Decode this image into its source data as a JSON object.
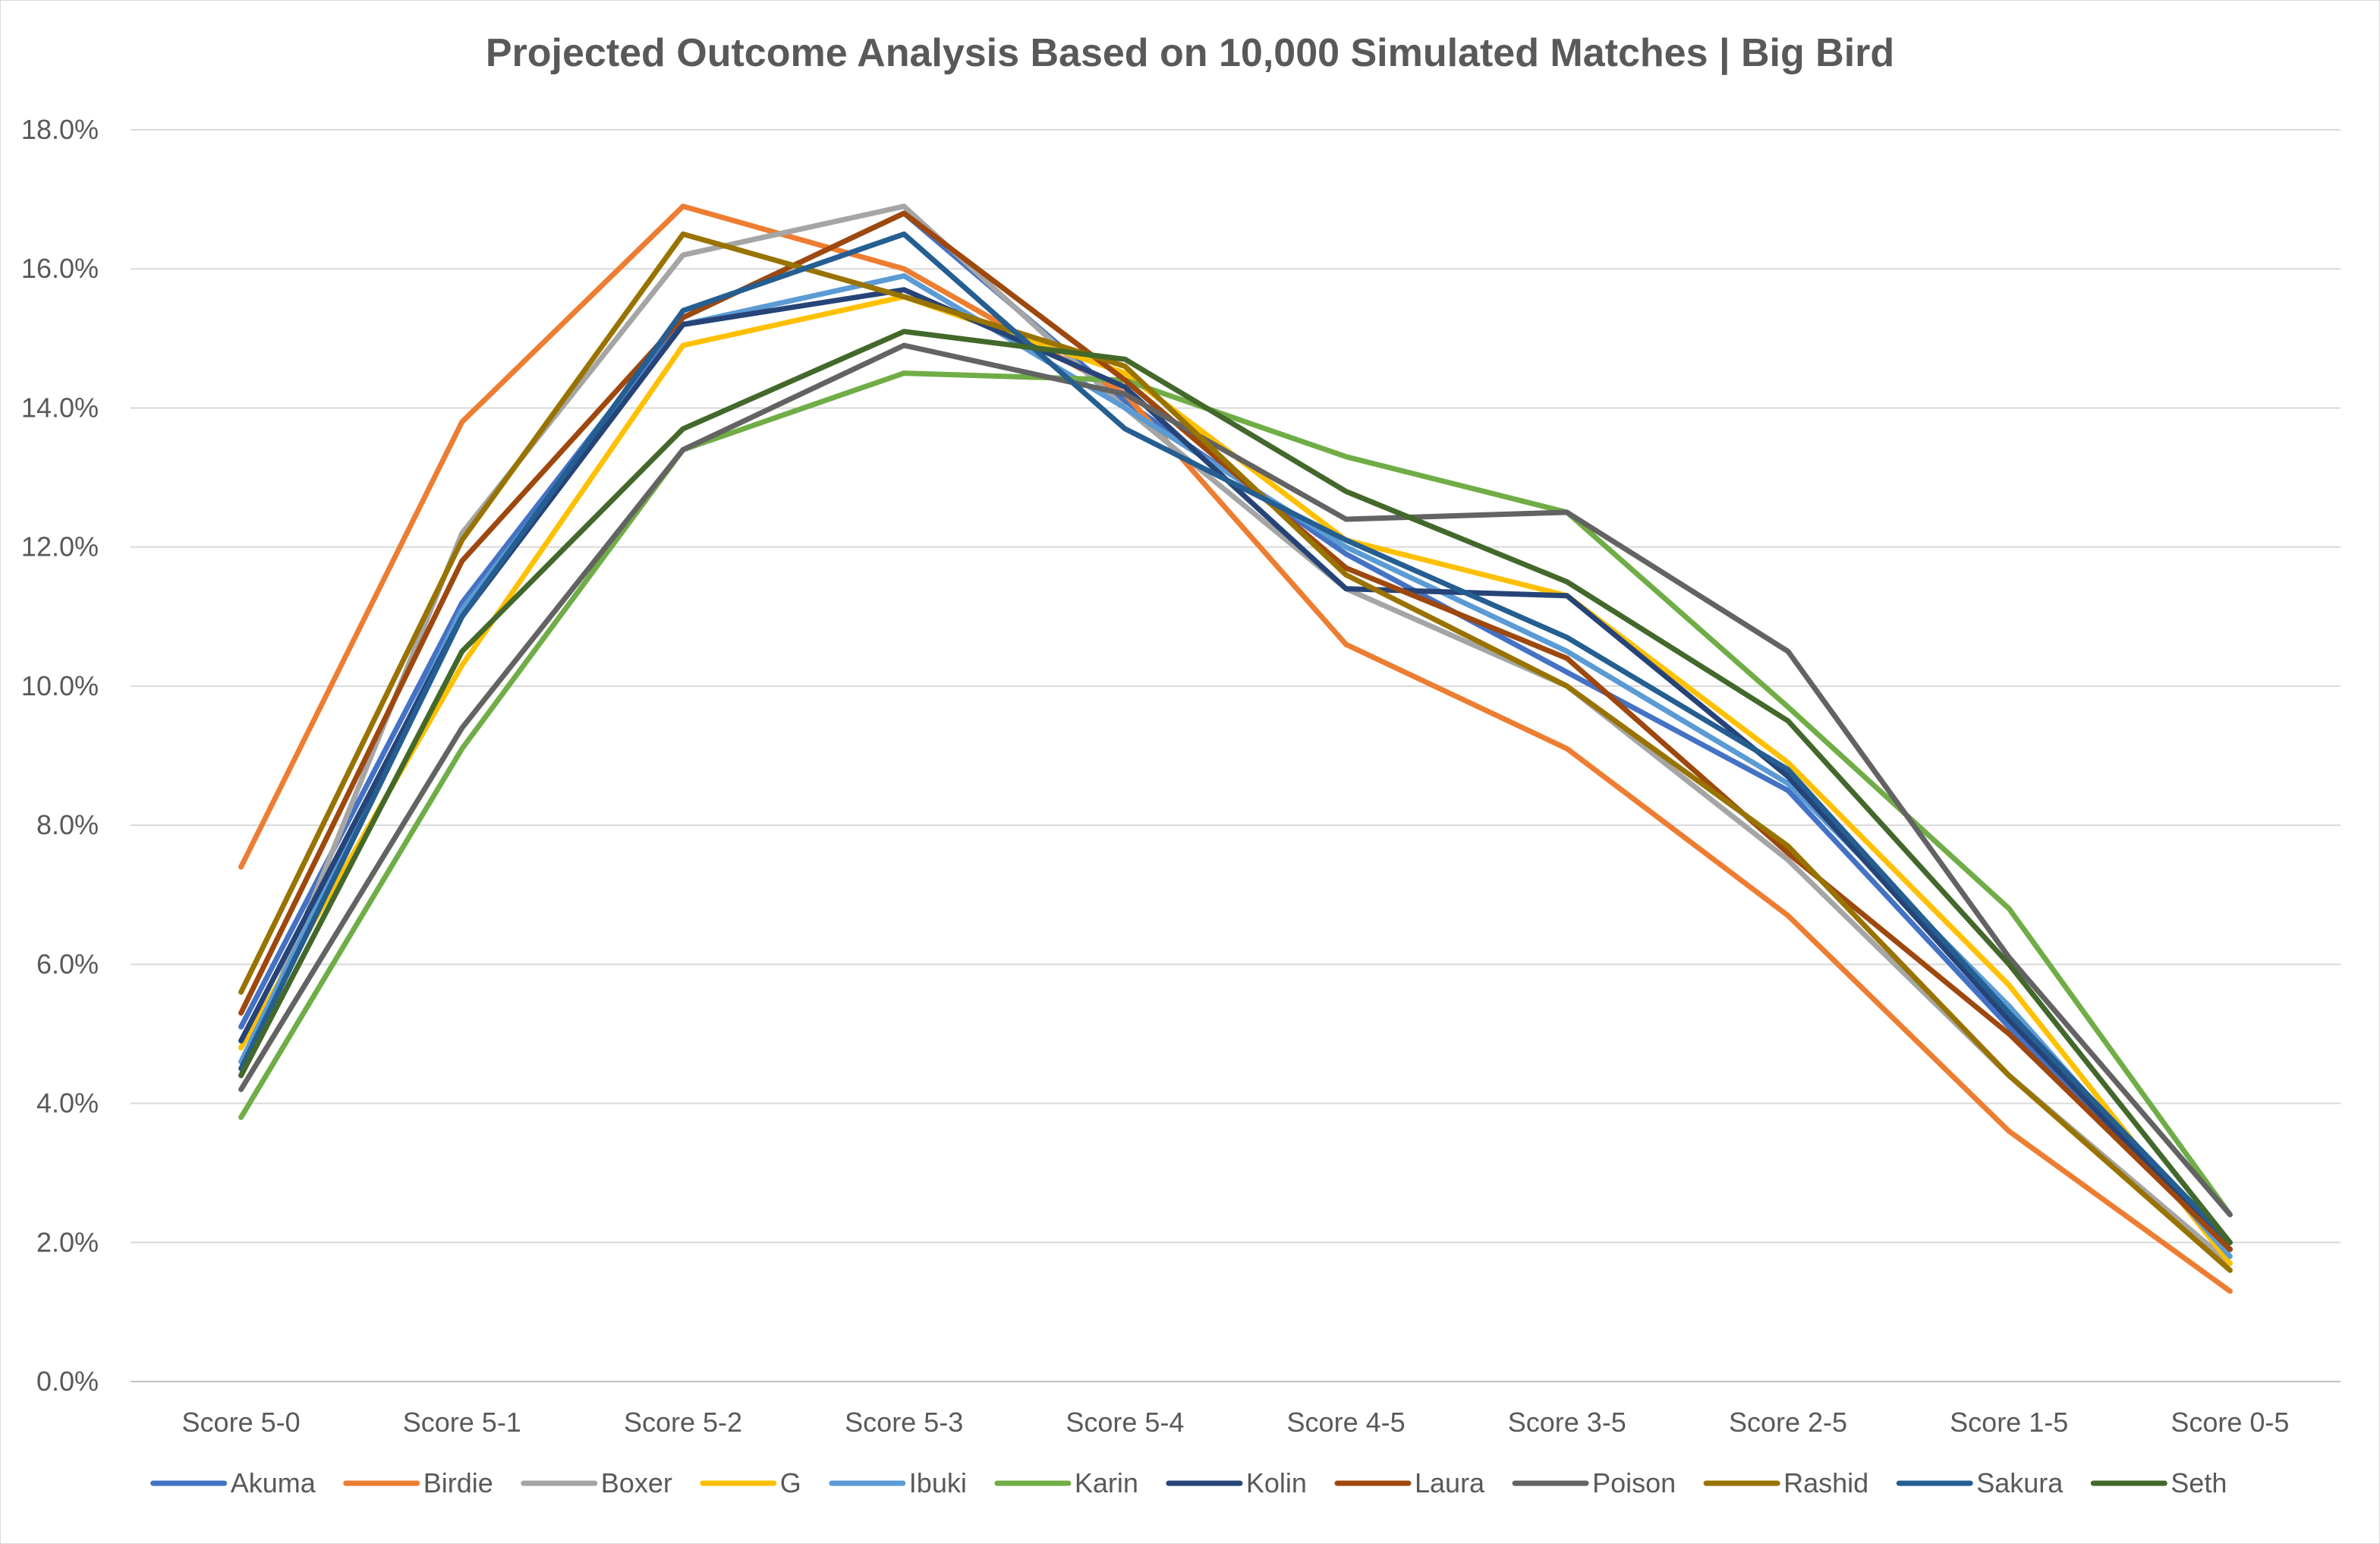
{
  "chart_data": {
    "type": "line",
    "title": "Projected Outcome Analysis Based on 10,000 Simulated Matches | Big Bird",
    "xlabel": "",
    "ylabel": "",
    "categories": [
      "Score 5-0",
      "Score 5-1",
      "Score 5-2",
      "Score 5-3",
      "Score 5-4",
      "Score 4-5",
      "Score 3-5",
      "Score 2-5",
      "Score 1-5",
      "Score 0-5"
    ],
    "ylim": [
      0,
      18
    ],
    "yticks": [
      0,
      2,
      4,
      6,
      8,
      10,
      12,
      14,
      16,
      18
    ],
    "ytick_labels": [
      "0.0%",
      "2.0%",
      "4.0%",
      "6.0%",
      "8.0%",
      "10.0%",
      "12.0%",
      "14.0%",
      "16.0%",
      "18.0%"
    ],
    "grid": "horizontal",
    "legend_position": "bottom",
    "series": [
      {
        "name": "Akuma",
        "color": "#4472C4",
        "values": [
          5.1,
          11.2,
          15.3,
          16.8,
          14.1,
          11.9,
          10.2,
          8.5,
          5.1,
          1.9
        ]
      },
      {
        "name": "Birdie",
        "color": "#ED7D31",
        "values": [
          7.4,
          13.8,
          16.9,
          16.0,
          14.2,
          10.6,
          9.1,
          6.7,
          3.6,
          1.3
        ]
      },
      {
        "name": "Boxer",
        "color": "#A5A5A5",
        "values": [
          4.4,
          12.2,
          16.2,
          16.9,
          14.0,
          11.4,
          10.0,
          7.5,
          4.4,
          1.7
        ]
      },
      {
        "name": "G",
        "color": "#FFC000",
        "values": [
          4.8,
          10.3,
          14.9,
          15.6,
          14.5,
          12.1,
          11.3,
          8.9,
          5.7,
          1.7
        ]
      },
      {
        "name": "Ibuki",
        "color": "#5B9BD5",
        "values": [
          4.6,
          11.1,
          15.2,
          15.9,
          14.0,
          12.0,
          10.5,
          8.6,
          5.4,
          1.8
        ]
      },
      {
        "name": "Karin",
        "color": "#70AD47",
        "values": [
          3.8,
          9.1,
          13.4,
          14.5,
          14.4,
          13.3,
          12.5,
          9.7,
          6.8,
          2.4
        ]
      },
      {
        "name": "Kolin",
        "color": "#264478",
        "values": [
          4.9,
          11.0,
          15.2,
          15.7,
          14.3,
          11.4,
          11.3,
          8.7,
          5.2,
          1.9
        ]
      },
      {
        "name": "Laura",
        "color": "#9E480E",
        "values": [
          5.3,
          11.8,
          15.3,
          16.8,
          14.4,
          11.7,
          10.4,
          7.6,
          5.0,
          1.9
        ]
      },
      {
        "name": "Poison",
        "color": "#636363",
        "values": [
          4.2,
          9.4,
          13.4,
          14.9,
          14.2,
          12.4,
          12.5,
          10.5,
          6.1,
          2.4
        ]
      },
      {
        "name": "Rashid",
        "color": "#997300",
        "values": [
          5.6,
          12.1,
          16.5,
          15.6,
          14.6,
          11.6,
          10.0,
          7.7,
          4.4,
          1.6
        ]
      },
      {
        "name": "Sakura",
        "color": "#255E91",
        "values": [
          4.5,
          11.0,
          15.4,
          16.5,
          13.7,
          12.1,
          10.7,
          8.8,
          5.3,
          2.0
        ]
      },
      {
        "name": "Seth",
        "color": "#43682B",
        "values": [
          4.4,
          10.5,
          13.7,
          15.1,
          14.7,
          12.8,
          11.5,
          9.5,
          6.0,
          2.0
        ]
      }
    ]
  }
}
